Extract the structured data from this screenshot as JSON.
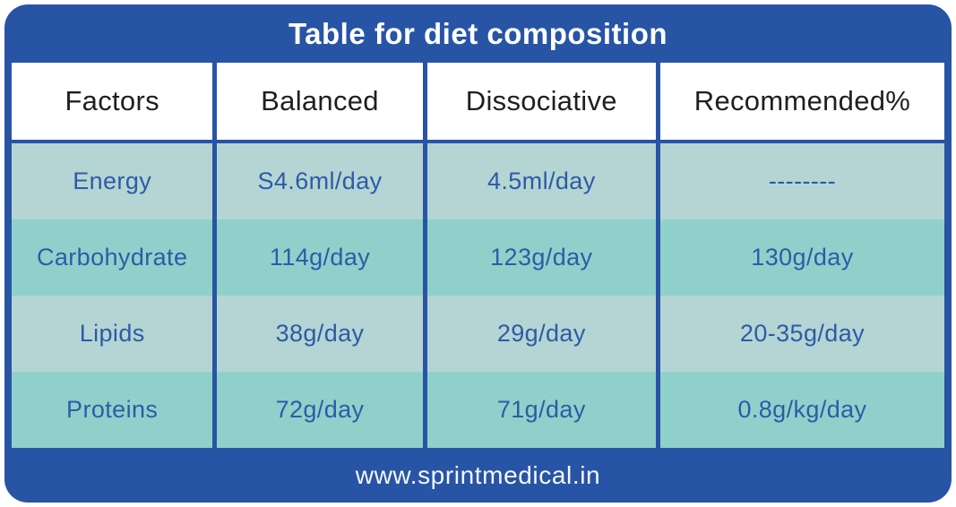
{
  "title": "Table for diet composition",
  "footer": {
    "website": "www.sprintmedical.in"
  },
  "colors": {
    "primary_blue": "#2854a5",
    "row_light": "#b4d5d3",
    "row_teal": "#90d0cb",
    "cell_text_blue": "#2d5ba7",
    "header_text": "#1f1f1f",
    "title_text": "#ffffff"
  },
  "chart_data": {
    "type": "table",
    "title": "Table for diet composition",
    "columns": [
      "Factors",
      "Balanced",
      "Dissociative",
      "Recommended%"
    ],
    "rows": [
      [
        "Energy",
        "S4.6ml/day",
        "4.5ml/day",
        "--------"
      ],
      [
        "Carbohydrate",
        "114g/day",
        "123g/day",
        "130g/day"
      ],
      [
        "Lipids",
        "38g/day",
        "29g/day",
        "20-35g/day"
      ],
      [
        "Proteins",
        "72g/day",
        "71g/day",
        "0.8g/kg/day"
      ]
    ]
  }
}
